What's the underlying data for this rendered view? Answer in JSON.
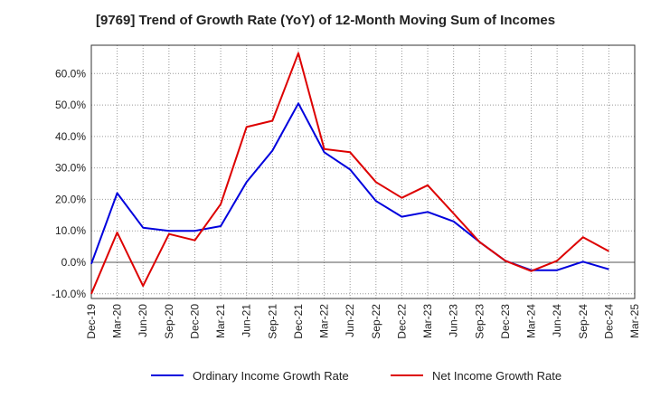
{
  "chart_data": {
    "type": "line",
    "title": "[9769]  Trend of Growth Rate (YoY) of 12-Month Moving Sum of Incomes",
    "xlabel": "",
    "ylabel": "",
    "ylim": [
      -11.5,
      69
    ],
    "y_ticks": [
      "-10.0%",
      "0.0%",
      "10.0%",
      "20.0%",
      "30.0%",
      "40.0%",
      "50.0%",
      "60.0%"
    ],
    "y_tick_values": [
      -10,
      0,
      10,
      20,
      30,
      40,
      50,
      60
    ],
    "categories": [
      "Dec-19",
      "Mar-20",
      "Jun-20",
      "Sep-20",
      "Dec-20",
      "Mar-21",
      "Jun-21",
      "Sep-21",
      "Dec-21",
      "Mar-22",
      "Jun-22",
      "Sep-22",
      "Dec-22",
      "Mar-23",
      "Jun-23",
      "Sep-23",
      "Dec-23",
      "Mar-24",
      "Jun-24",
      "Sep-24",
      "Dec-24",
      "Mar-25"
    ],
    "grid": true,
    "legend_position": "bottom",
    "series": [
      {
        "name": "Ordinary Income Growth Rate",
        "color": "#0000dd",
        "values": [
          -0.5,
          22.0,
          11.0,
          10.0,
          10.0,
          11.5,
          25.5,
          35.5,
          50.5,
          35.0,
          29.5,
          19.5,
          14.5,
          16.0,
          13.0,
          6.5,
          0.5,
          -2.5,
          -2.5,
          0.2,
          -2.2,
          null
        ]
      },
      {
        "name": "Net Income Growth Rate",
        "color": "#dd0000",
        "values": [
          -10.0,
          9.5,
          -7.5,
          9.0,
          7.0,
          18.5,
          43.0,
          45.0,
          66.5,
          36.0,
          35.0,
          25.5,
          20.5,
          24.5,
          15.5,
          6.5,
          0.5,
          -2.8,
          0.5,
          8.0,
          3.5,
          null
        ]
      }
    ]
  }
}
